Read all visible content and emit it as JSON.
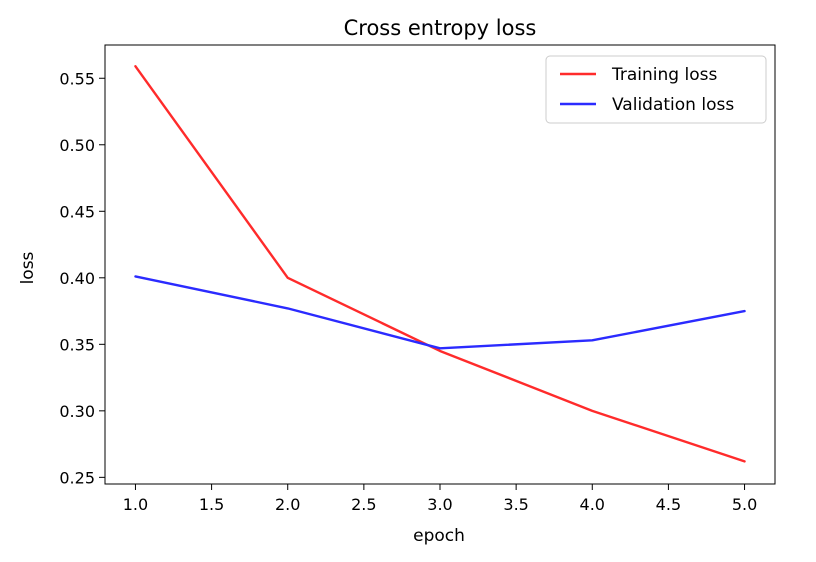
{
  "chart_data": {
    "type": "line",
    "title": "Cross entropy loss",
    "xlabel": "epoch",
    "ylabel": "loss",
    "x": [
      1.0,
      2.0,
      3.0,
      4.0,
      5.0
    ],
    "xlim": [
      0.8,
      5.2
    ],
    "ylim": [
      0.245,
      0.575
    ],
    "x_ticks": [
      "1.0",
      "1.5",
      "2.0",
      "2.5",
      "3.0",
      "3.5",
      "4.0",
      "4.5",
      "5.0"
    ],
    "y_ticks": [
      "0.25",
      "0.30",
      "0.35",
      "0.40",
      "0.45",
      "0.50",
      "0.55"
    ],
    "grid": false,
    "legend_position": "top-right",
    "series": [
      {
        "name": "Training loss",
        "color": "#ff2b2b",
        "values": [
          0.559,
          0.4,
          0.345,
          0.3,
          0.262
        ]
      },
      {
        "name": "Validation loss",
        "color": "#2b2bff",
        "values": [
          0.401,
          0.377,
          0.347,
          0.353,
          0.375
        ]
      }
    ]
  }
}
